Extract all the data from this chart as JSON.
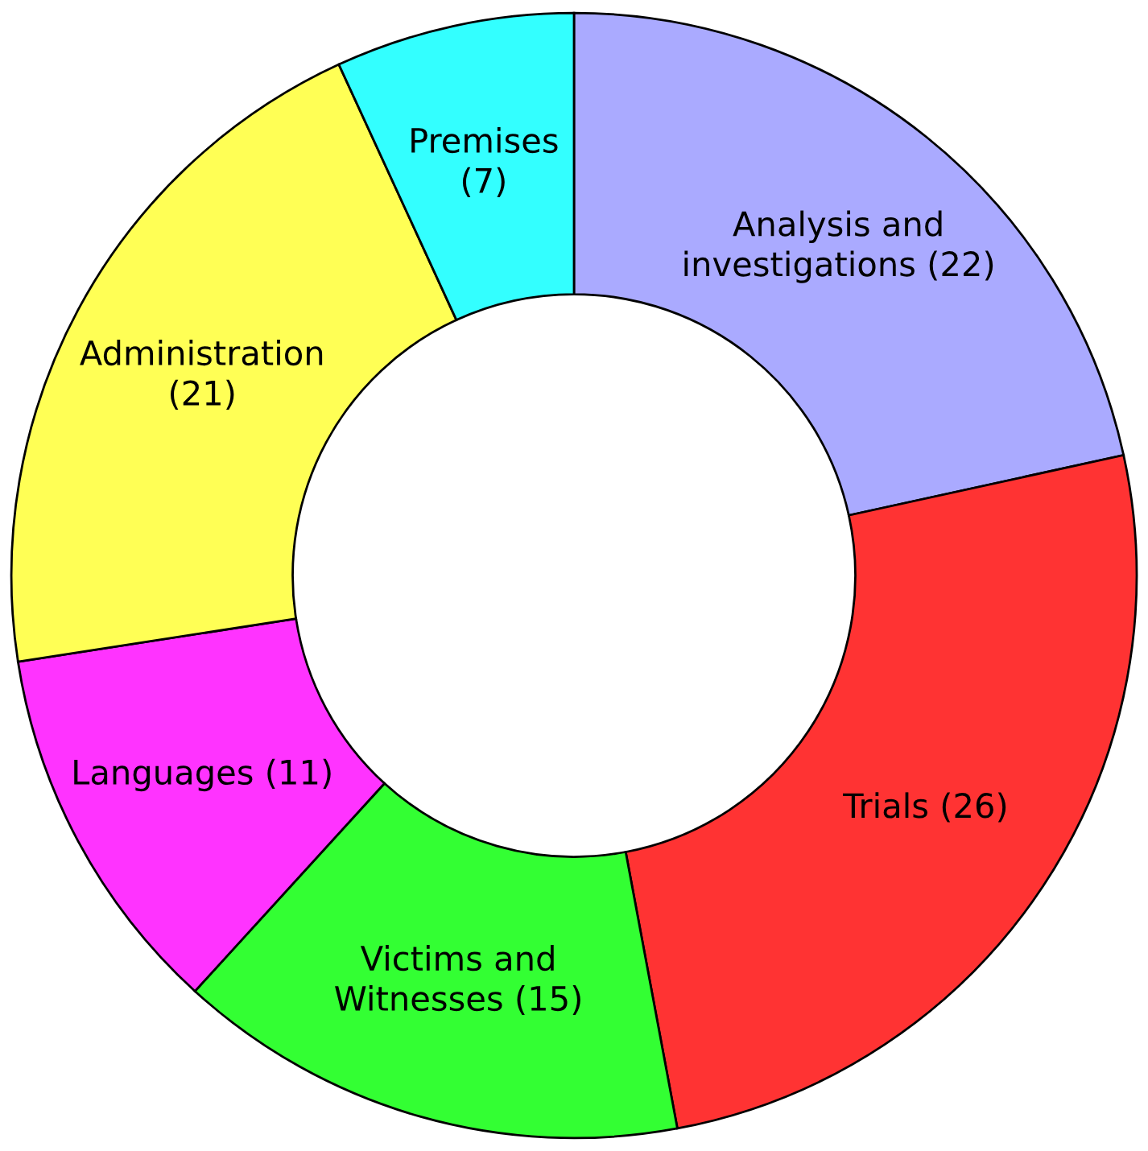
{
  "chart_data": {
    "type": "donut",
    "categories": [
      "Analysis and\ninvestigations",
      "Trials",
      "Victims and\nWitnesses",
      "Languages",
      "Administration",
      "Premises"
    ],
    "values": [
      22,
      26,
      15,
      11,
      21,
      7
    ],
    "colors": [
      "#aaaaff",
      "#ff3333",
      "#33ff33",
      "#ff33ff",
      "#ffff55",
      "#33ffff"
    ],
    "value_labels": [
      "(22)",
      "(26)",
      "(15)",
      "(11)",
      "(21)",
      "(7)"
    ]
  }
}
